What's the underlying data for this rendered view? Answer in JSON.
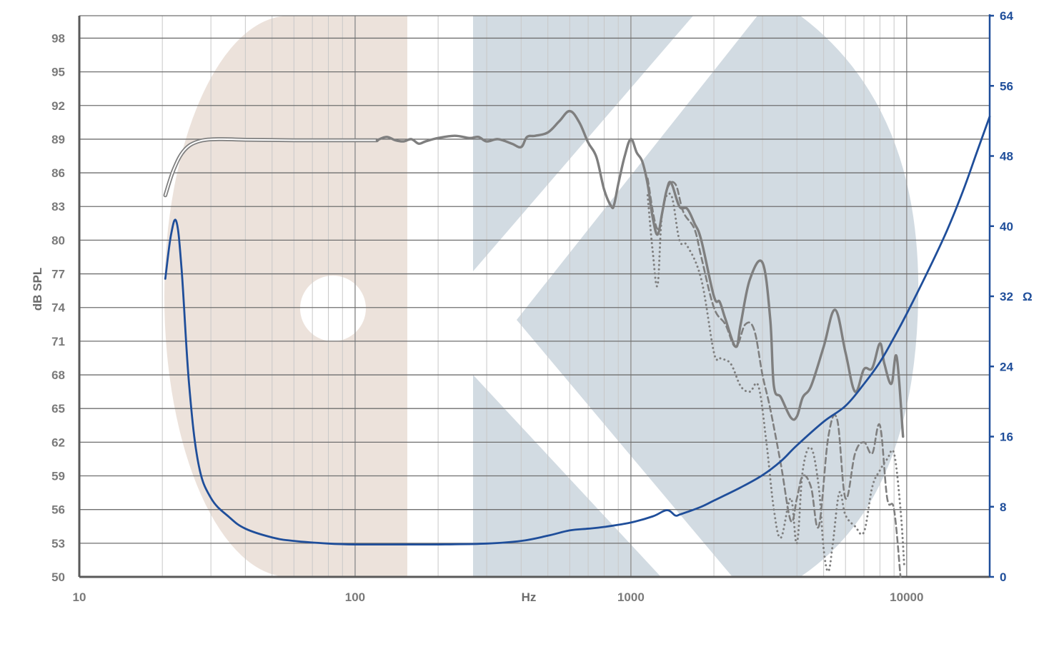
{
  "chart_data": {
    "type": "line",
    "title": "",
    "xlabel": "Hz",
    "ylabel": "dB SPL",
    "y2label": "Ω",
    "x_scale": "log",
    "xlim": [
      10,
      20000
    ],
    "ylim": [
      50,
      100
    ],
    "y2lim": [
      0,
      64
    ],
    "grid": true,
    "legend": "none",
    "x_tick_labels": [
      "10",
      "100",
      "1000",
      "10000"
    ],
    "y_tick_labels": [
      "50",
      "53",
      "56",
      "59",
      "62",
      "65",
      "68",
      "71",
      "74",
      "77",
      "80",
      "83",
      "86",
      "89",
      "92",
      "95",
      "98"
    ],
    "y2_tick_labels": [
      "0",
      "8",
      "16",
      "24",
      "32",
      "40",
      "48",
      "56",
      "64"
    ],
    "colors": {
      "spl": "#7f7f7f",
      "impedance": "#1f4e9a",
      "watermark_left": "#eadfd7",
      "watermark_right": "#cdd7df",
      "grid": "#c8c8c8"
    },
    "series": [
      {
        "style": "double-line",
        "axis": "left",
        "x": [
          20.5,
          22,
          24,
          27,
          32,
          40,
          60,
          90,
          120
        ],
        "y": [
          84.0,
          86.3,
          88.0,
          88.8,
          89.0,
          88.95,
          88.9,
          88.9,
          88.9
        ]
      },
      {
        "style": "solid",
        "axis": "left",
        "x": [
          120,
          130,
          140,
          150,
          160,
          170,
          180,
          200,
          230,
          260,
          280,
          300,
          330,
          370,
          400,
          420,
          450,
          500,
          550,
          600,
          650,
          700,
          750,
          800,
          850,
          870,
          900,
          950,
          1000,
          1050,
          1100,
          1150,
          1200,
          1250,
          1300,
          1350,
          1400,
          1500,
          1600,
          1700,
          1800,
          2000,
          2100,
          2200,
          2400,
          2500,
          2700,
          3000,
          3200,
          3300,
          3500,
          3800,
          4000,
          4200,
          4500,
          5000,
          5500,
          6000,
          6500,
          7000,
          7500,
          8000,
          8300,
          8800,
          9200,
          9700
        ],
        "y": [
          88.9,
          89.2,
          88.9,
          88.8,
          89.0,
          88.6,
          88.8,
          89.1,
          89.3,
          89.1,
          89.2,
          88.8,
          89.0,
          88.6,
          88.3,
          89.2,
          89.3,
          89.6,
          90.6,
          91.5,
          90.5,
          88.7,
          87.4,
          84.5,
          83.0,
          83.2,
          85.0,
          87.5,
          89.0,
          87.8,
          87.0,
          85.0,
          82.0,
          80.5,
          82.5,
          84.5,
          85.1,
          83.0,
          82.8,
          81.5,
          80.0,
          75.0,
          74.5,
          73.0,
          70.5,
          72.5,
          76.5,
          78.0,
          73.0,
          67.0,
          66.0,
          64.2,
          64.3,
          66.0,
          67.0,
          70.5,
          73.8,
          70.0,
          66.5,
          68.5,
          68.6,
          70.8,
          69.0,
          67.2,
          69.6,
          62.5
        ]
      },
      {
        "style": "dashed",
        "axis": "left",
        "x": [
          1150,
          1250,
          1350,
          1450,
          1550,
          1700,
          1800,
          2000,
          2200,
          2400,
          2600,
          2800,
          3000,
          3200,
          3500,
          3800,
          4000,
          4200,
          4500,
          4800,
          5200,
          5600,
          6000,
          6500,
          7000,
          7500,
          8000,
          8500,
          9000,
          9500
        ],
        "y": [
          85.5,
          81.0,
          84.5,
          85.0,
          82.5,
          81.0,
          78.5,
          74.0,
          72.5,
          70.5,
          72.5,
          72.0,
          68.0,
          65.0,
          60.0,
          55.0,
          57.0,
          59.0,
          58.0,
          54.5,
          62.5,
          64.0,
          57.0,
          61.0,
          62.0,
          61.0,
          63.5,
          57.0,
          56.0,
          50.0
        ]
      },
      {
        "style": "dotted",
        "axis": "left",
        "x": [
          1150,
          1200,
          1250,
          1300,
          1400,
          1500,
          1600,
          1800,
          2000,
          2100,
          2300,
          2500,
          2700,
          2900,
          3100,
          3300,
          3500,
          3800,
          4000,
          4200,
          4500,
          4800,
          5000,
          5200,
          5400,
          5700,
          6000,
          6500,
          7000,
          7500,
          8000,
          8500,
          9000,
          9500,
          9800
        ],
        "y": [
          84.0,
          79.0,
          76.0,
          82.5,
          84.0,
          80.0,
          79.5,
          76.5,
          70.0,
          69.5,
          69.0,
          67.0,
          66.5,
          67.0,
          62.0,
          56.0,
          53.5,
          57.0,
          53.0,
          59.5,
          61.5,
          58.0,
          52.5,
          50.5,
          53.0,
          57.5,
          55.5,
          54.5,
          54.0,
          58.0,
          59.5,
          60.5,
          61.0,
          56.0,
          51.0
        ]
      },
      {
        "style": "solid",
        "axis": "right",
        "x": [
          20.5,
          21.5,
          22.5,
          23.5,
          25,
          27,
          30,
          35,
          40,
          50,
          60,
          80,
          100,
          150,
          200,
          300,
          400,
          500,
          600,
          700,
          800,
          1000,
          1200,
          1350,
          1450,
          1500,
          1600,
          1800,
          2000,
          2500,
          3000,
          3500,
          4000,
          5000,
          6000,
          7000,
          8000,
          9000,
          10000,
          12000,
          14000,
          16000,
          18000,
          20000
        ],
        "y": [
          34.0,
          39.0,
          40.5,
          35.0,
          22.0,
          13.0,
          9.0,
          6.8,
          5.5,
          4.5,
          4.1,
          3.8,
          3.7,
          3.7,
          3.7,
          3.8,
          4.1,
          4.7,
          5.3,
          5.5,
          5.7,
          6.2,
          6.9,
          7.6,
          7.0,
          7.1,
          7.4,
          8.0,
          8.7,
          10.2,
          11.6,
          13.2,
          15.0,
          17.7,
          19.5,
          22.0,
          24.5,
          27.3,
          30.0,
          35.0,
          39.5,
          44.0,
          48.5,
          52.5
        ]
      }
    ]
  }
}
